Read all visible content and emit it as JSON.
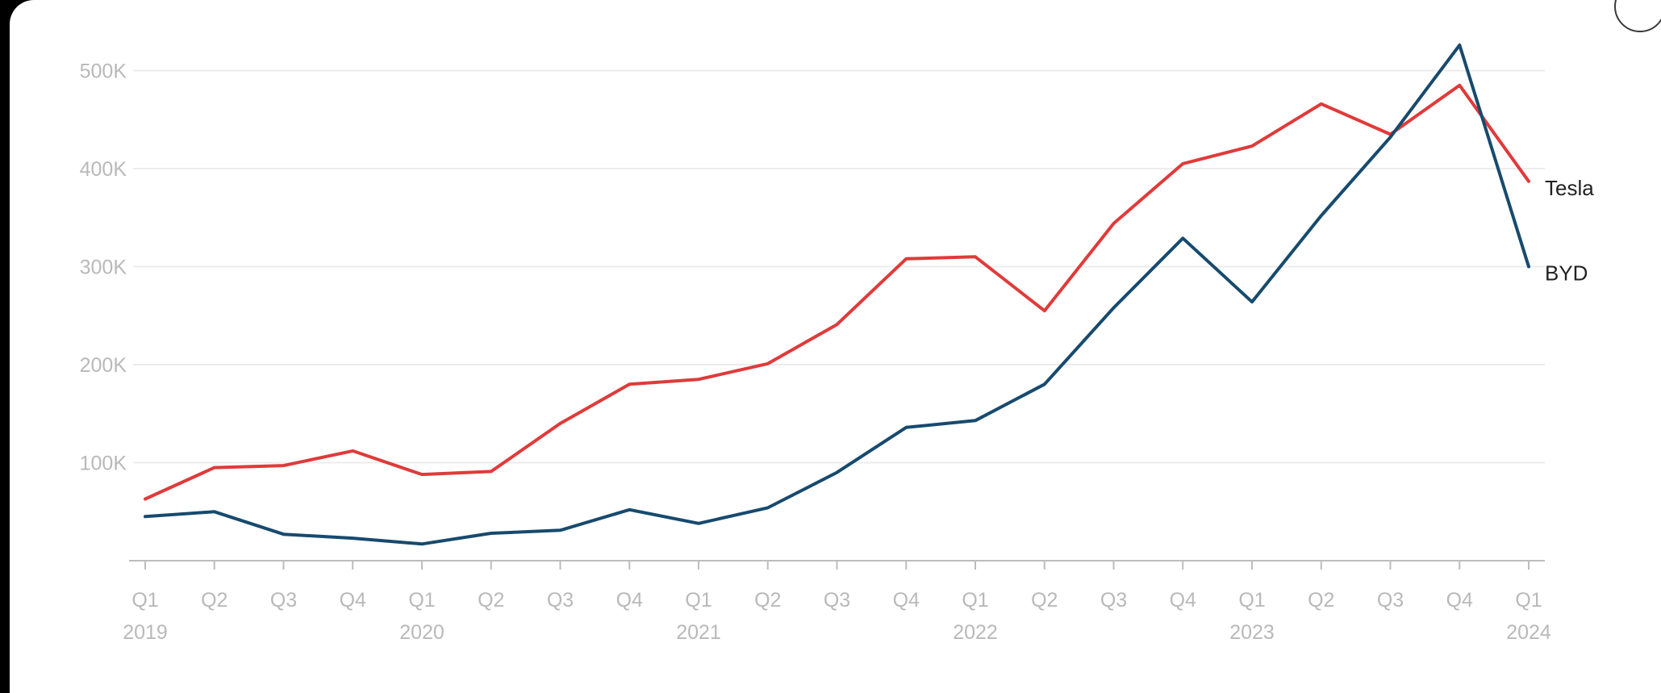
{
  "chart_data": {
    "type": "line",
    "title": "",
    "xlabel": "",
    "ylabel": "",
    "x": [
      "Q1 2019",
      "Q2 2019",
      "Q3 2019",
      "Q4 2019",
      "Q1 2020",
      "Q2 2020",
      "Q3 2020",
      "Q4 2020",
      "Q1 2021",
      "Q2 2021",
      "Q3 2021",
      "Q4 2021",
      "Q1 2022",
      "Q2 2022",
      "Q3 2022",
      "Q4 2022",
      "Q1 2023",
      "Q2 2023",
      "Q3 2023",
      "Q4 2023",
      "Q1 2024"
    ],
    "quarter_labels": [
      "Q1",
      "Q2",
      "Q3",
      "Q4",
      "Q1",
      "Q2",
      "Q3",
      "Q4",
      "Q1",
      "Q2",
      "Q3",
      "Q4",
      "Q1",
      "Q2",
      "Q3",
      "Q4",
      "Q1",
      "Q2",
      "Q3",
      "Q4",
      "Q1"
    ],
    "year_labels": [
      {
        "index": 0,
        "label": "2019"
      },
      {
        "index": 4,
        "label": "2020"
      },
      {
        "index": 8,
        "label": "2021"
      },
      {
        "index": 12,
        "label": "2022"
      },
      {
        "index": 16,
        "label": "2023"
      },
      {
        "index": 20,
        "label": "2024"
      }
    ],
    "y_ticks": [
      100000,
      200000,
      300000,
      400000,
      500000
    ],
    "y_tick_labels": [
      "100K",
      "200K",
      "300K",
      "400K",
      "500K"
    ],
    "ylim": [
      0,
      530000
    ],
    "grid": true,
    "legend": "direct labels at line ends",
    "series": [
      {
        "name": "Tesla",
        "color": "#e03a3a",
        "values": [
          63000,
          95000,
          97000,
          112000,
          88000,
          91000,
          140000,
          180000,
          185000,
          201000,
          241000,
          308000,
          310000,
          255000,
          344000,
          405000,
          423000,
          466000,
          435000,
          485000,
          387000
        ]
      },
      {
        "name": "BYD",
        "color": "#174a6e",
        "values": [
          45000,
          50000,
          27000,
          23000,
          17000,
          28000,
          31000,
          52000,
          38000,
          54000,
          90000,
          136000,
          143000,
          180000,
          258000,
          329000,
          264000,
          352000,
          432000,
          526000,
          300000
        ]
      }
    ]
  }
}
